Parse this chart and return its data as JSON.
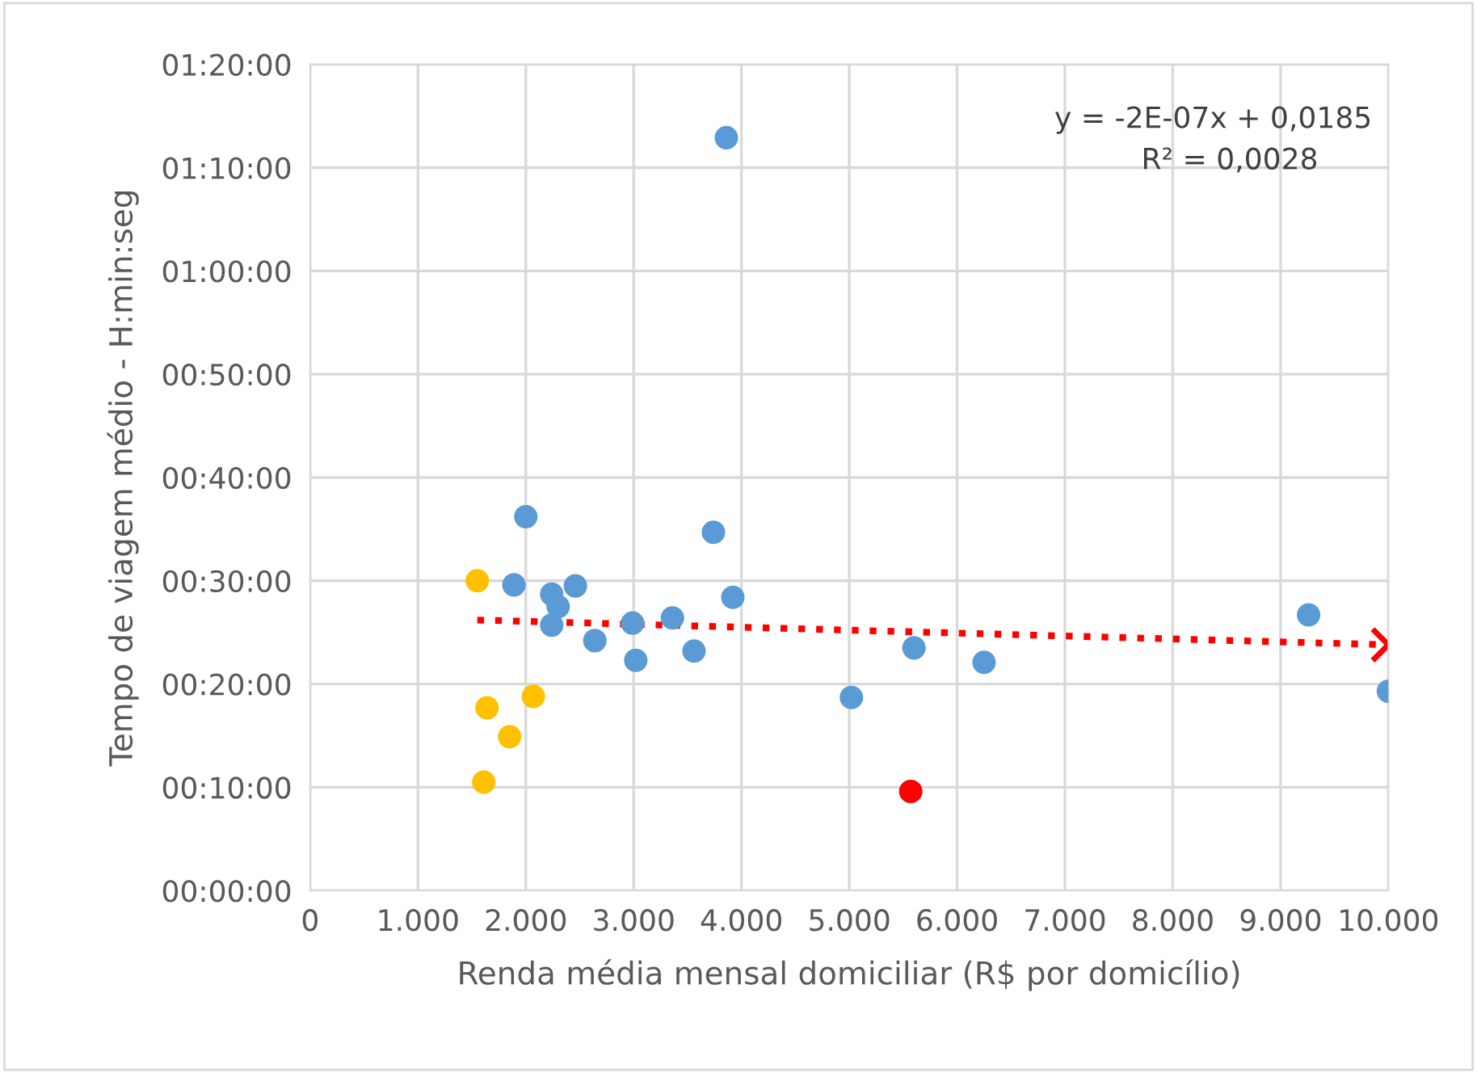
{
  "chart_data": {
    "type": "scatter",
    "xlabel": "Renda média mensal domiciliar (R$ por domicílio)",
    "ylabel": "Tempo de viagem médio - H:min:seg",
    "xlim": [
      0,
      10000
    ],
    "ylim": [
      0,
      80
    ],
    "xticks": [
      0,
      {
        "value": 1000,
        "label": "1.000"
      },
      {
        "value": 2000,
        "label": "2.000"
      },
      {
        "value": 3000,
        "label": "3.000"
      },
      {
        "value": 4000,
        "label": "4.000"
      },
      {
        "value": 5000,
        "label": "5.000"
      },
      {
        "value": 6000,
        "label": "6.000"
      },
      {
        "value": 7000,
        "label": "7.000"
      },
      {
        "value": 8000,
        "label": "8.000"
      },
      {
        "value": 9000,
        "label": "9.000"
      },
      {
        "value": 10000,
        "label": "10.000"
      }
    ],
    "yticks": [
      {
        "value": 0,
        "label": "00:00:00"
      },
      {
        "value": 10,
        "label": "00:10:00"
      },
      {
        "value": 20,
        "label": "00:20:00"
      },
      {
        "value": 30,
        "label": "00:30:00"
      },
      {
        "value": 40,
        "label": "00:40:00"
      },
      {
        "value": 50,
        "label": "00:50:00"
      },
      {
        "value": 60,
        "label": "01:00:00"
      },
      {
        "value": 70,
        "label": "01:10:00"
      },
      {
        "value": 80,
        "label": "01:20:00"
      }
    ],
    "grid": true,
    "marker": "circle",
    "series": [
      {
        "color": "#5b9bd5",
        "x": [
          3860,
          2000,
          1890,
          2240,
          2240,
          2300,
          2460,
          2640,
          2990,
          3020,
          3360,
          3560,
          3740,
          3920,
          5020,
          5600,
          6250,
          9260,
          10000
        ],
        "values": [
          72.9,
          36.2,
          29.6,
          28.7,
          25.7,
          27.5,
          29.5,
          24.2,
          25.9,
          22.3,
          26.4,
          23.2,
          34.7,
          28.4,
          18.7,
          23.5,
          22.1,
          26.7,
          19.3
        ]
      },
      {
        "color": "#ffc000",
        "x": [
          1640,
          1550,
          2070,
          1850,
          1610
        ],
        "values": [
          17.7,
          30.0,
          18.8,
          14.9,
          10.5
        ]
      },
      {
        "color": "#ff0000",
        "x": [
          5570
        ],
        "values": [
          9.6
        ]
      },
      {
        "type": "line",
        "color": "#ff0000",
        "line_style": "dotted",
        "marker": "none",
        "x": [
          1550,
          10000
        ],
        "values": [
          26.2,
          23.8
        ]
      }
    ],
    "annotations": [
      "y = -2E-07x + 0,0185",
      "R² = 0,0028"
    ]
  }
}
